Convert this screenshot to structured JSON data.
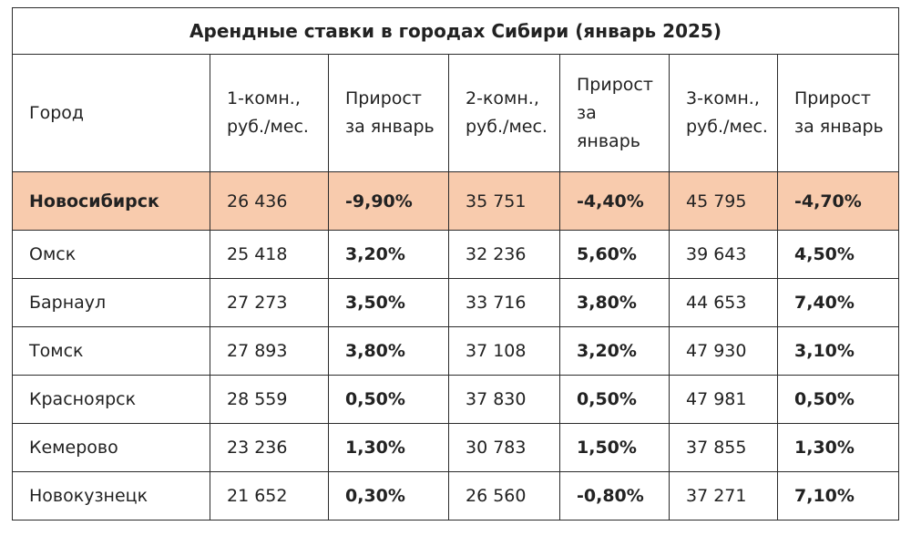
{
  "title": "Арендные ставки в городах Сибири (январь 2025)",
  "headers": [
    "Город",
    "1-комн., руб./мес.",
    "Прирост за январь",
    "2-комн., руб./мес.",
    "Прирост за январь",
    "3-комн., руб./мес.",
    "Прирост за январь"
  ],
  "header_lines": [
    [
      "Город"
    ],
    [
      "1-комн.,",
      "руб./мес."
    ],
    [
      "Прирост",
      "за январь"
    ],
    [
      "2-комн.,",
      "руб./мес."
    ],
    [
      "Прирост",
      "за",
      "январь"
    ],
    [
      "3-комн.,",
      "руб./мес."
    ],
    [
      "Прирост",
      "за январь"
    ]
  ],
  "highlight_color": "#f8cbad",
  "rows": [
    {
      "city": "Новосибирск",
      "r1": "26 436",
      "g1": "-9,90%",
      "r2": "35 751",
      "g2": "-4,40%",
      "r3": "45 795",
      "g3": "-4,70%"
    },
    {
      "city": "Омск",
      "r1": "25 418",
      "g1": "3,20%",
      "r2": "32 236",
      "g2": "5,60%",
      "r3": "39 643",
      "g3": "4,50%"
    },
    {
      "city": "Барнаул",
      "r1": "27 273",
      "g1": "3,50%",
      "r2": "33 716",
      "g2": "3,80%",
      "r3": "44 653",
      "g3": "7,40%"
    },
    {
      "city": "Томск",
      "r1": "27 893",
      "g1": "3,80%",
      "r2": "37 108",
      "g2": "3,20%",
      "r3": "47 930",
      "g3": "3,10%"
    },
    {
      "city": "Красноярск",
      "r1": "28 559",
      "g1": "0,50%",
      "r2": "37 830",
      "g2": "0,50%",
      "r3": "47 981",
      "g3": "0,50%"
    },
    {
      "city": "Кемерово",
      "r1": "23 236",
      "g1": "1,30%",
      "r2": "30 783",
      "g2": "1,50%",
      "r3": "37 855",
      "g3": "1,30%"
    },
    {
      "city": "Новокузнецк",
      "r1": "21 652",
      "g1": "0,30%",
      "r2": "26 560",
      "g2": "-0,80%",
      "r3": "37 271",
      "g3": "7,10%"
    }
  ]
}
